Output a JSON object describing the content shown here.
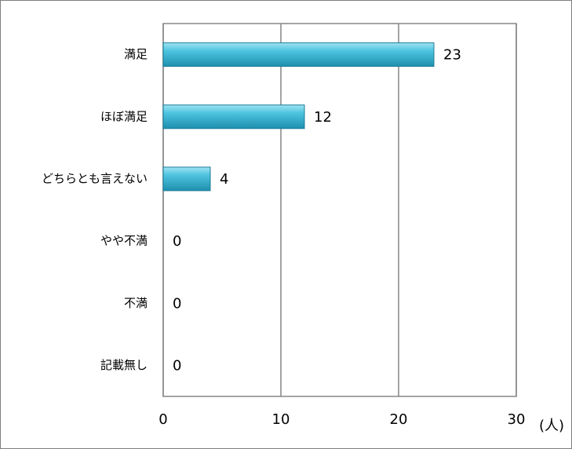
{
  "chart_data": {
    "type": "bar",
    "orientation": "horizontal",
    "categories": [
      "満足",
      "ほぼ満足",
      "どちらとも言えない",
      "やや不満",
      "不満",
      "記載無し"
    ],
    "values": [
      23,
      12,
      4,
      0,
      0,
      0
    ],
    "color": "#3cb4d2",
    "xlim": [
      0,
      30
    ],
    "xticks": [
      0,
      10,
      20,
      30
    ],
    "grid": true,
    "x_label": "(人)"
  }
}
